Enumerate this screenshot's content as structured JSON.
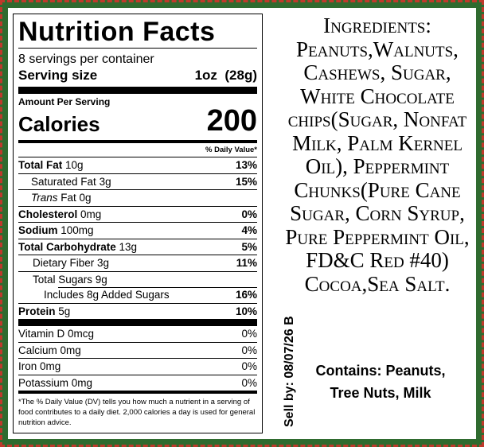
{
  "nutrition": {
    "title": "Nutrition Facts",
    "servings": "8 servings per container",
    "serving_size_label": "Serving size",
    "serving_size_value": "1oz  (28g)",
    "amount_per_serving": "Amount Per Serving",
    "calories_label": "Calories",
    "calories_value": "200",
    "dv_header": "% Daily Value*",
    "rows": [
      {
        "name": "Total Fat",
        "amount": "10g",
        "dv": "13%"
      },
      {
        "name": "Saturated Fat",
        "amount": "3g",
        "dv": "15%"
      },
      {
        "name": "Trans",
        "amount": "Fat 0g",
        "dv": ""
      },
      {
        "name": "Cholesterol",
        "amount": "0mg",
        "dv": "0%"
      },
      {
        "name": "Sodium",
        "amount": "100mg",
        "dv": "4%"
      },
      {
        "name": "Total Carbohydrate",
        "amount": "13g",
        "dv": "5%"
      },
      {
        "name": "Dietary Fiber 3g",
        "amount": "",
        "dv": "11%"
      },
      {
        "name": "Total Sugars 9g",
        "amount": "",
        "dv": ""
      },
      {
        "name": "Includes 8g Added Sugars",
        "amount": "",
        "dv": "16%"
      },
      {
        "name": "Protein",
        "amount": "5g",
        "dv": "10%"
      },
      {
        "name": "Vitamin D 0mcg",
        "amount": "",
        "dv": "0%"
      },
      {
        "name": "Calcium 0mg",
        "amount": "",
        "dv": "0%"
      },
      {
        "name": "Iron 0mg",
        "amount": "",
        "dv": "0%"
      },
      {
        "name": "Potassium 0mg",
        "amount": "",
        "dv": "0%"
      }
    ],
    "footnote": "*The % Daily Value (DV) tells you how much a nutrient in a serving of food contributes to a daily diet. 2,000 calories a day is used for general nutrition advice."
  },
  "ingredients": "Ingredients: Peanuts,Walnuts, Cashews, Sugar, White Chocolate chips(Sugar, Nonfat Milk, Palm Kernel Oil), Peppermint Chunks(Pure Cane Sugar, Corn Syrup, Pure Peppermint Oil, FD&C Red #40) Cocoa,Sea Salt.",
  "sell_by": "Sell by: 08/07/26 B",
  "contains": "Contains: Peanuts, Tree Nuts, Milk",
  "colors": {
    "frame": "#2f6b2f",
    "accent": "#c0392b"
  }
}
